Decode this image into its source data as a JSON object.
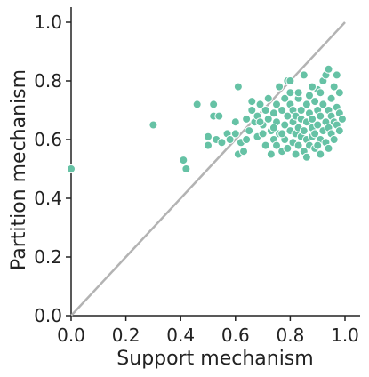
{
  "chart_data": {
    "type": "scatter",
    "xlabel": "Support mechanism",
    "ylabel": "Partition mechanism",
    "xlim": [
      0,
      1
    ],
    "ylim": [
      0,
      1
    ],
    "x_ticks": [
      "0.0",
      "0.2",
      "0.4",
      "0.6",
      "0.8",
      "1.0"
    ],
    "y_ticks": [
      "0.0",
      "0.2",
      "0.4",
      "0.6",
      "0.8",
      "1.0"
    ],
    "grid": false,
    "legend": "none",
    "reference_line": {
      "from": [
        0,
        0
      ],
      "to": [
        1,
        1
      ],
      "color": "#b3b3b3"
    },
    "point_color": "#66c2a5",
    "points": [
      [
        0.0,
        0.5
      ],
      [
        0.3,
        0.65
      ],
      [
        0.41,
        0.53
      ],
      [
        0.42,
        0.5
      ],
      [
        0.46,
        0.72
      ],
      [
        0.5,
        0.58
      ],
      [
        0.5,
        0.61
      ],
      [
        0.52,
        0.68
      ],
      [
        0.52,
        0.72
      ],
      [
        0.53,
        0.6
      ],
      [
        0.54,
        0.68
      ],
      [
        0.55,
        0.59
      ],
      [
        0.57,
        0.62
      ],
      [
        0.58,
        0.6
      ],
      [
        0.6,
        0.62
      ],
      [
        0.6,
        0.66
      ],
      [
        0.61,
        0.78
      ],
      [
        0.61,
        0.55
      ],
      [
        0.62,
        0.59
      ],
      [
        0.63,
        0.56
      ],
      [
        0.64,
        0.6
      ],
      [
        0.64,
        0.67
      ],
      [
        0.65,
        0.63
      ],
      [
        0.66,
        0.7
      ],
      [
        0.66,
        0.73
      ],
      [
        0.67,
        0.66
      ],
      [
        0.68,
        0.61
      ],
      [
        0.68,
        0.68
      ],
      [
        0.69,
        0.72
      ],
      [
        0.7,
        0.62
      ],
      [
        0.7,
        0.65
      ],
      [
        0.71,
        0.7
      ],
      [
        0.71,
        0.58
      ],
      [
        0.72,
        0.67
      ],
      [
        0.72,
        0.74
      ],
      [
        0.73,
        0.63
      ],
      [
        0.73,
        0.55
      ],
      [
        0.74,
        0.69
      ],
      [
        0.74,
        0.6
      ],
      [
        0.75,
        0.72
      ],
      [
        0.75,
        0.66
      ],
      [
        0.75,
        0.58
      ],
      [
        0.76,
        0.78
      ],
      [
        0.76,
        0.62
      ],
      [
        0.77,
        0.7
      ],
      [
        0.77,
        0.56
      ],
      [
        0.78,
        0.65
      ],
      [
        0.78,
        0.74
      ],
      [
        0.78,
        0.6
      ],
      [
        0.79,
        0.8
      ],
      [
        0.79,
        0.68
      ],
      [
        0.79,
        0.57
      ],
      [
        0.8,
        0.63
      ],
      [
        0.8,
        0.72
      ],
      [
        0.8,
        0.76
      ],
      [
        0.81,
        0.59
      ],
      [
        0.81,
        0.66
      ],
      [
        0.81,
        0.7
      ],
      [
        0.82,
        0.62
      ],
      [
        0.82,
        0.55
      ],
      [
        0.82,
        0.68
      ],
      [
        0.83,
        0.74
      ],
      [
        0.83,
        0.64
      ],
      [
        0.83,
        0.58
      ],
      [
        0.84,
        0.7
      ],
      [
        0.84,
        0.61
      ],
      [
        0.84,
        0.67
      ],
      [
        0.85,
        0.82
      ],
      [
        0.85,
        0.56
      ],
      [
        0.85,
        0.63
      ],
      [
        0.86,
        0.72
      ],
      [
        0.86,
        0.66
      ],
      [
        0.86,
        0.6
      ],
      [
        0.87,
        0.69
      ],
      [
        0.87,
        0.58
      ],
      [
        0.87,
        0.75
      ],
      [
        0.88,
        0.64
      ],
      [
        0.88,
        0.61
      ],
      [
        0.88,
        0.67
      ],
      [
        0.89,
        0.73
      ],
      [
        0.89,
        0.57
      ],
      [
        0.89,
        0.62
      ],
      [
        0.9,
        0.77
      ],
      [
        0.9,
        0.65
      ],
      [
        0.9,
        0.7
      ],
      [
        0.91,
        0.6
      ],
      [
        0.91,
        0.68
      ],
      [
        0.91,
        0.55
      ],
      [
        0.92,
        0.72
      ],
      [
        0.92,
        0.63
      ],
      [
        0.92,
        0.8
      ],
      [
        0.93,
        0.66
      ],
      [
        0.93,
        0.82
      ],
      [
        0.93,
        0.59
      ],
      [
        0.94,
        0.7
      ],
      [
        0.94,
        0.64
      ],
      [
        0.94,
        0.84
      ],
      [
        0.95,
        0.62
      ],
      [
        0.95,
        0.74
      ],
      [
        0.95,
        0.68
      ],
      [
        0.96,
        0.78
      ],
      [
        0.96,
        0.66
      ],
      [
        0.96,
        0.6
      ],
      [
        0.97,
        0.71
      ],
      [
        0.97,
        0.65
      ],
      [
        0.97,
        0.82
      ],
      [
        0.98,
        0.63
      ],
      [
        0.98,
        0.76
      ],
      [
        0.98,
        0.69
      ],
      [
        0.99,
        0.67
      ],
      [
        0.8,
        0.8
      ],
      [
        0.83,
        0.76
      ],
      [
        0.88,
        0.78
      ],
      [
        0.91,
        0.76
      ],
      [
        0.77,
        0.62
      ],
      [
        0.74,
        0.64
      ],
      [
        0.69,
        0.66
      ],
      [
        0.86,
        0.54
      ],
      [
        0.9,
        0.58
      ],
      [
        0.94,
        0.57
      ]
    ]
  }
}
